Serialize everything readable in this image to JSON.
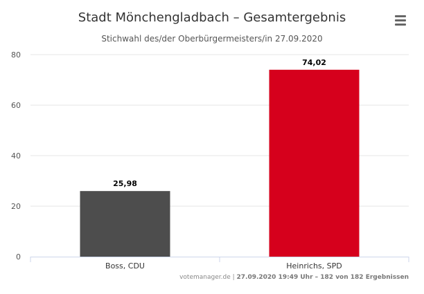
{
  "chart_data": {
    "type": "bar",
    "title": "Stadt Mönchengladbach – Gesamtergebnis",
    "subtitle": "Stichwahl des/der Oberbürgermeisters/in 27.09.2020",
    "categories": [
      "Boss, CDU",
      "Heinrichs, SPD"
    ],
    "values": [
      25.98,
      74.02
    ],
    "data_labels": [
      "25,98",
      "74,02"
    ],
    "colors": [
      "#4d4d4d",
      "#d6001c"
    ],
    "ylim": [
      0,
      80
    ],
    "yticks": [
      0,
      20,
      40,
      60,
      80
    ],
    "grid": true,
    "legend": "none"
  },
  "menu": {
    "icon": "hamburger-menu-icon"
  },
  "credits": {
    "source": "votemanager.de",
    "separator": " | ",
    "status": "27.09.2020 19:49 Uhr – 182 von 182 Ergebnissen"
  }
}
